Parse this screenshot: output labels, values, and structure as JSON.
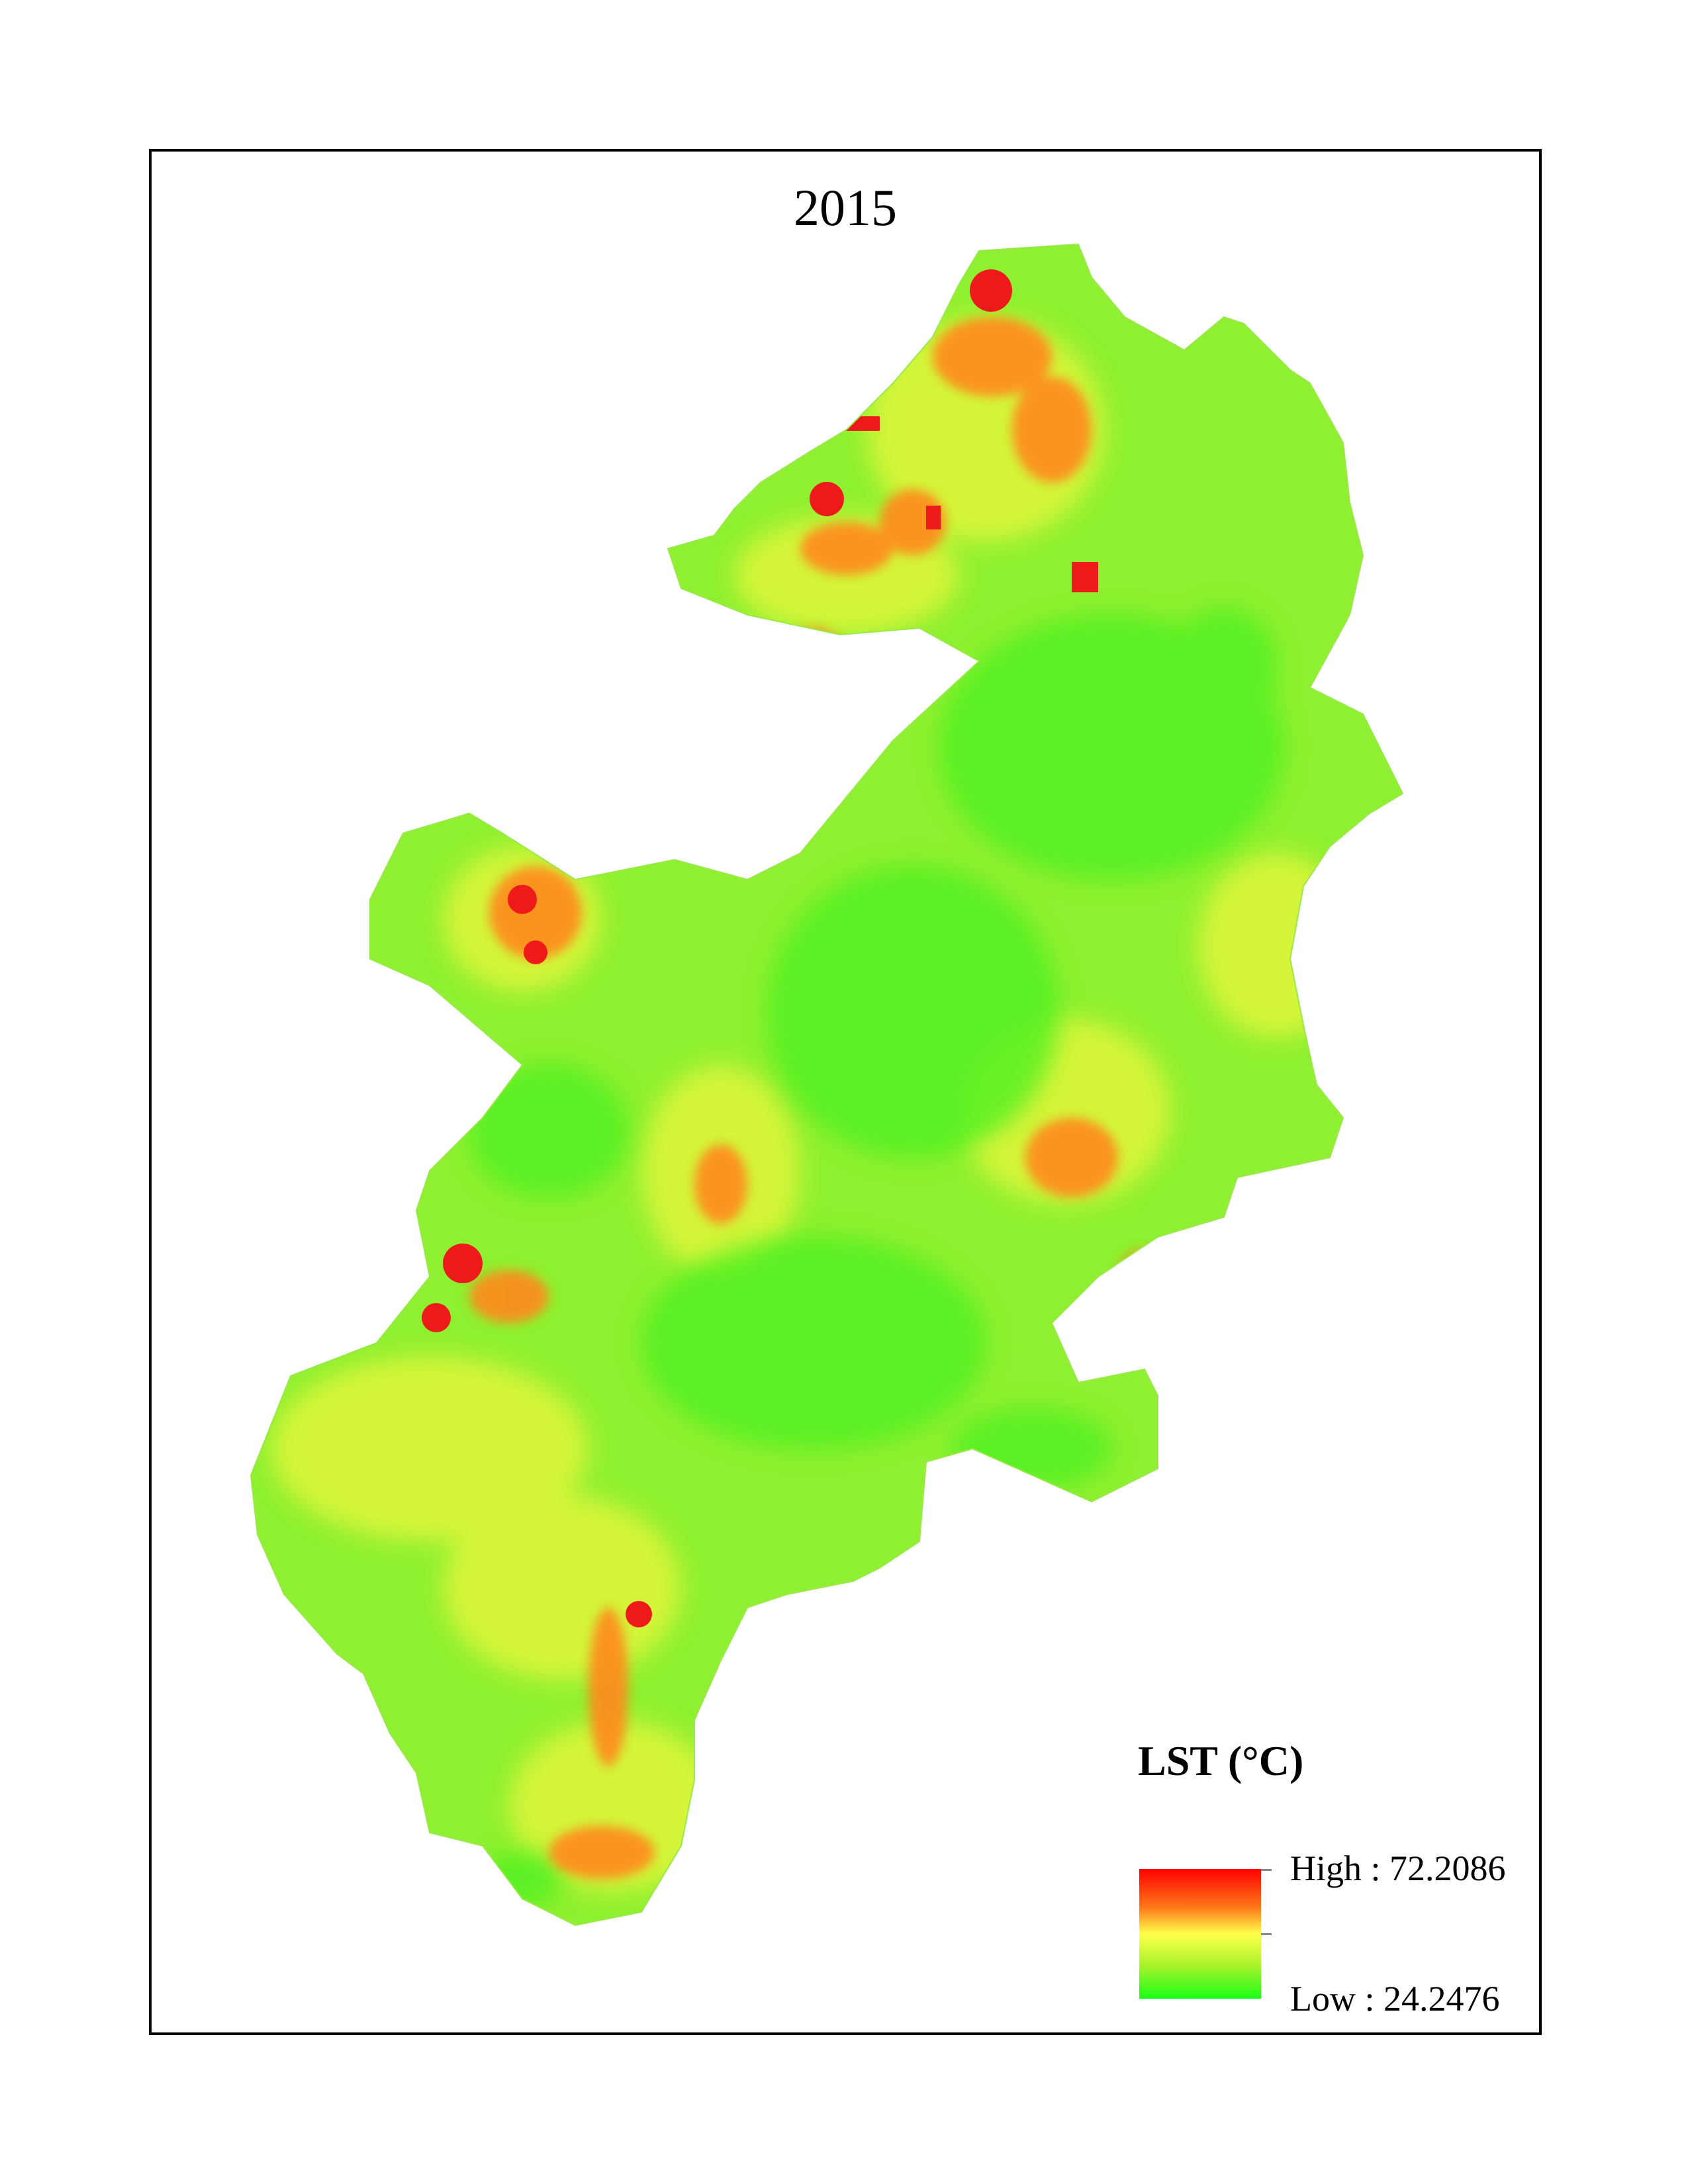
{
  "map": {
    "title": "2015"
  },
  "legend": {
    "title": "LST (°C)",
    "high_label": "High : 72.2086",
    "low_label": "Low : 24.2476",
    "colors": {
      "high": "#ff0000",
      "mid_high": "#ff7a1a",
      "mid": "#ffff4a",
      "mid_low": "#a7f22a",
      "low": "#1aff1a"
    }
  }
}
